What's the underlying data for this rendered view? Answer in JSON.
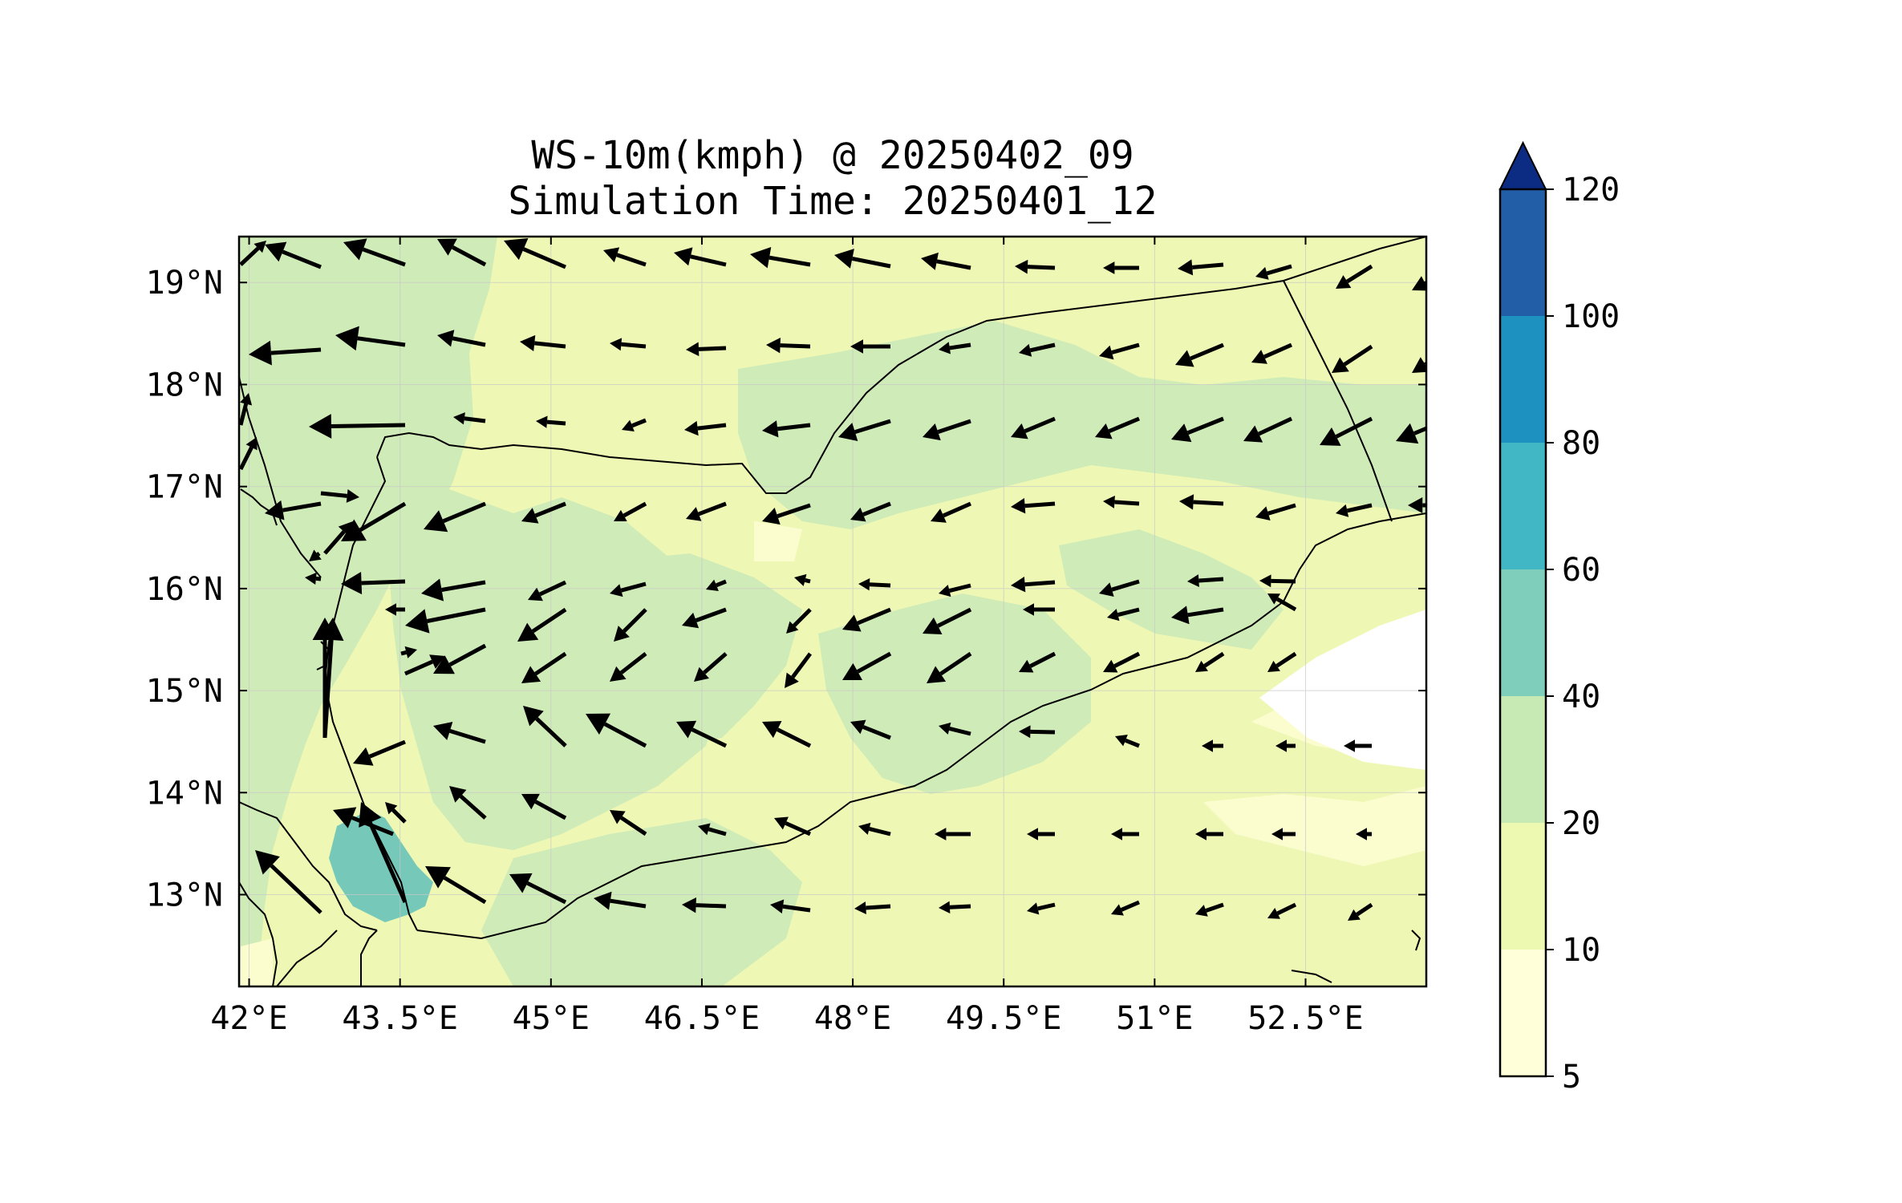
{
  "chart_data": {
    "type": "map",
    "title_line1": "WS-10m(kmph) @ 20250402_09",
    "title_line2": "Simulation Time: 20250401_12",
    "x_ticks": [
      "42°E",
      "43.5°E",
      "45°E",
      "46.5°E",
      "48°E",
      "49.5°E",
      "51°E",
      "52.5°E"
    ],
    "x_tick_values": [
      42,
      43.5,
      45,
      46.5,
      48,
      49.5,
      51,
      52.5
    ],
    "y_ticks": [
      "19°N",
      "18°N",
      "17°N",
      "16°N",
      "15°N",
      "14°N",
      "13°N"
    ],
    "y_tick_values": [
      19,
      18,
      17,
      16,
      15,
      14,
      13
    ],
    "xlim": [
      41.9,
      53.7
    ],
    "ylim": [
      12.1,
      19.45
    ],
    "grid": true,
    "colorbar": {
      "levels": [
        5,
        10,
        20,
        40,
        60,
        80,
        100,
        120
      ],
      "level_labels": [
        "5",
        "10",
        "20",
        "40",
        "60",
        "80",
        "100",
        "120"
      ],
      "colors": [
        "#ffffd9",
        "#edf8b1",
        "#c7e9b4",
        "#7fcdbb",
        "#41b6c4",
        "#1d91c0",
        "#225ea8",
        "#0c2c84"
      ],
      "extend": "max"
    }
  }
}
